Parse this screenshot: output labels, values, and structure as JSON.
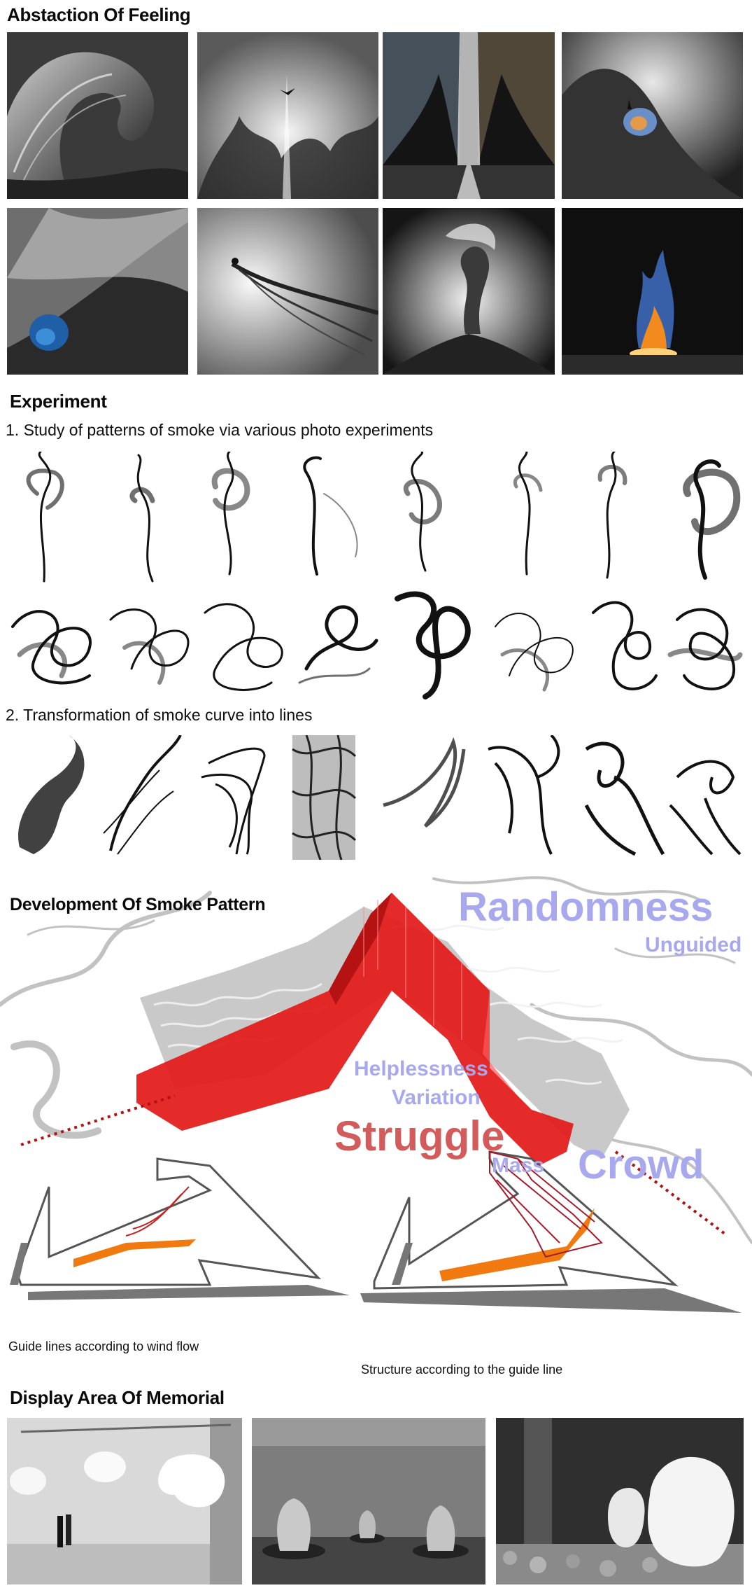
{
  "sections": {
    "abstraction": {
      "title": "Abstaction Of Feeling"
    },
    "experiment": {
      "title": "Experiment",
      "step1": "1. Study of patterns of smoke via various photo experiments",
      "step2": "2. Transformation of smoke curve into lines"
    },
    "development": {
      "title": "Development Of Smoke Pattern",
      "words": {
        "randomness": "Randomness",
        "unguided": "Unguided",
        "helplessness": "Helplessness",
        "variation": "Variation",
        "struggle": "Struggle",
        "mass": "Mass",
        "crowd": "Crowd"
      },
      "captions": {
        "left": "Guide lines according to wind flow",
        "right": "Structure according to the guide line"
      }
    },
    "display": {
      "title": "Display Area Of Memorial"
    }
  },
  "colors": {
    "word_blue": "#a8a8ee",
    "struggle_red": "#d45b5b",
    "structure_red": "#e41f1f",
    "dotted_red": "#b31212",
    "guide_orange": "#f07a10"
  },
  "images": {
    "feeling_row1": [
      "wave-photo",
      "bird-over-smoke-photo",
      "smoke-forest-corridor-photo",
      "figures-on-slope-photo"
    ],
    "feeling_row2": [
      "blue-smoke-slope-photo",
      "figure-on-smoke-branch-photo",
      "smoke-tree-photo",
      "fire-photo"
    ],
    "smoke_row1_count": 8,
    "smoke_row2_count": 8,
    "curve_row_count": 8,
    "display_row": [
      "floating-heads-gallery-photo",
      "mesh-figures-gallery-photo",
      "giant-heads-gallery-photo"
    ]
  }
}
